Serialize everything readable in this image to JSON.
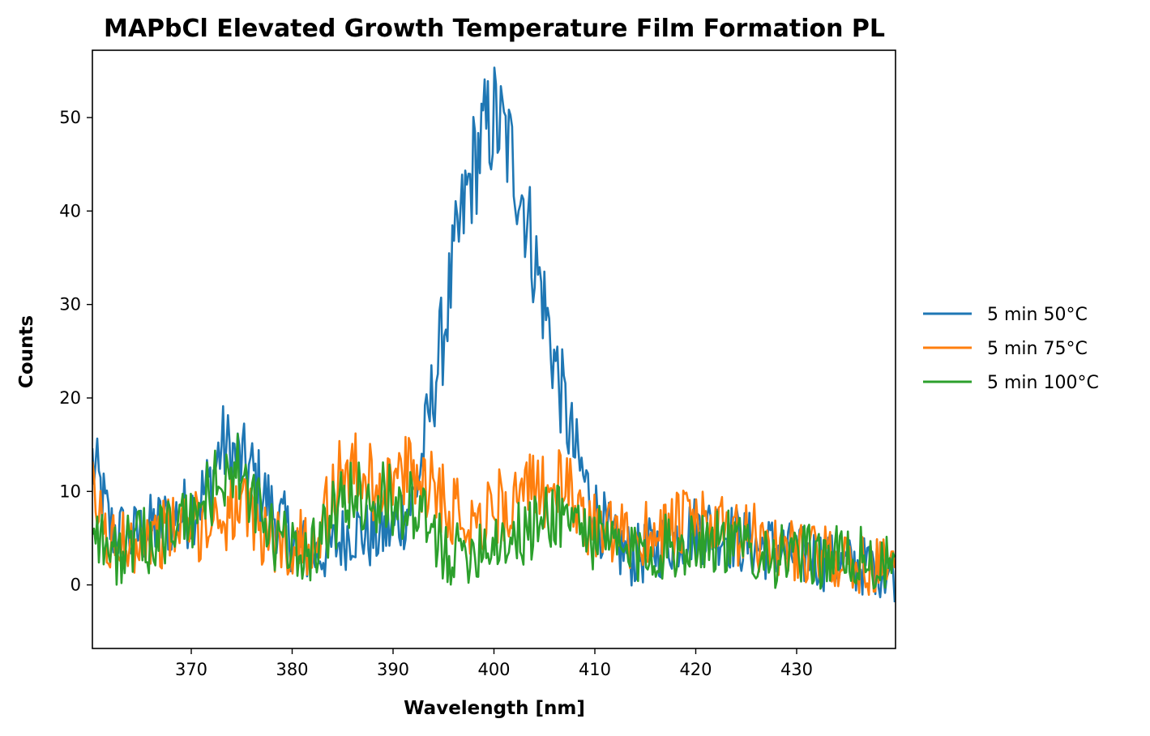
{
  "chart_data": {
    "type": "line",
    "title": "MAPbCl Elevated Growth Temperature Film Formation PL",
    "xlabel": "Wavelength [nm]",
    "ylabel": "Counts",
    "xlim": [
      360.2,
      439.8
    ],
    "ylim": [
      -6.8,
      57.2
    ],
    "xticks": [
      370,
      380,
      390,
      400,
      410,
      420,
      430
    ],
    "yticks": [
      0,
      10,
      20,
      30,
      40,
      50
    ],
    "grid": false,
    "legend": "outside-right",
    "series": [
      {
        "name": "5 min 50°C",
        "color": "#1f77b4",
        "x": [
          360,
          362,
          364,
          366,
          368,
          370,
          372,
          373,
          374,
          375,
          376,
          378,
          380,
          382,
          384,
          386,
          388,
          390,
          392,
          393,
          394,
          395,
          396,
          397,
          398,
          399,
          400,
          401,
          402,
          403,
          404,
          405,
          406,
          407,
          408,
          409,
          410,
          411,
          412,
          414,
          416,
          418,
          420,
          422,
          424,
          426,
          428,
          430,
          432,
          434,
          436,
          438,
          440
        ],
        "values": [
          14,
          6,
          5,
          6,
          7,
          8,
          11,
          15,
          14,
          13,
          12,
          8,
          5,
          3,
          4,
          6,
          5,
          6,
          9,
          14,
          21,
          27,
          34,
          40,
          45,
          48,
          50,
          48,
          45,
          41,
          35,
          30,
          24,
          19,
          14,
          11,
          8,
          6,
          4,
          3,
          4,
          5,
          6,
          6,
          5,
          4,
          4,
          3,
          3,
          2,
          2,
          2,
          1
        ]
      },
      {
        "name": "5 min 75°C",
        "color": "#ff7f0e",
        "x": [
          360,
          362,
          364,
          366,
          368,
          370,
          372,
          374,
          376,
          378,
          380,
          382,
          384,
          385,
          386,
          388,
          390,
          392,
          394,
          396,
          398,
          400,
          402,
          404,
          406,
          408,
          410,
          412,
          414,
          416,
          418,
          420,
          422,
          424,
          426,
          428,
          430,
          432,
          434,
          436,
          438,
          440
        ],
        "values": [
          10,
          4,
          5,
          5,
          6,
          6,
          7,
          8,
          7,
          5,
          4,
          5,
          9,
          13,
          12,
          11,
          11,
          12,
          11,
          8,
          7,
          8,
          9,
          10,
          11,
          9,
          6,
          5,
          5,
          6,
          6,
          7,
          6,
          5,
          5,
          4,
          4,
          3,
          3,
          2,
          2,
          2
        ]
      },
      {
        "name": "5 min 100°C",
        "color": "#2ca02c",
        "x": [
          360,
          362,
          364,
          366,
          368,
          370,
          372,
          374,
          376,
          378,
          380,
          382,
          384,
          386,
          388,
          390,
          392,
          394,
          396,
          398,
          400,
          402,
          404,
          406,
          408,
          410,
          412,
          414,
          416,
          418,
          420,
          422,
          424,
          426,
          428,
          430,
          432,
          434,
          436,
          438,
          440
        ],
        "values": [
          8,
          3,
          4,
          5,
          6,
          7,
          10,
          13,
          9,
          5,
          4,
          4,
          7,
          10,
          9,
          9,
          8,
          5,
          3,
          4,
          5,
          5,
          6,
          8,
          7,
          5,
          4,
          3,
          4,
          4,
          5,
          5,
          4,
          4,
          3,
          3,
          3,
          3,
          3,
          2,
          2
        ]
      }
    ]
  }
}
